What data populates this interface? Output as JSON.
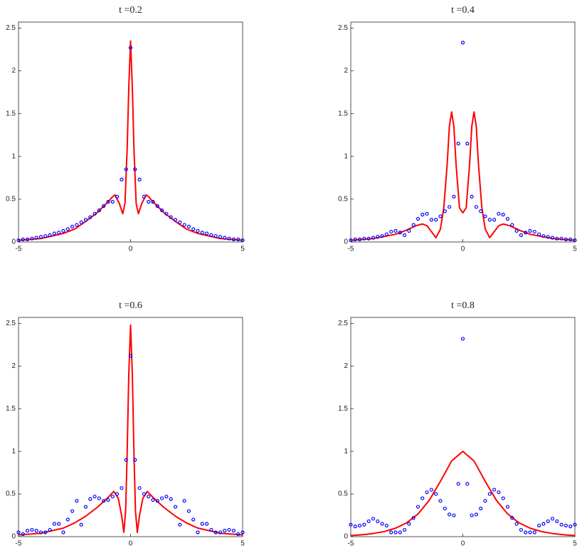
{
  "chart_data": [
    {
      "type": "line",
      "title": "t =0.2",
      "xlim": [
        -5,
        5
      ],
      "ylim": [
        0,
        2.57
      ],
      "xticks": [
        -5,
        0,
        5
      ],
      "yticks": [
        0,
        0.5,
        1,
        1.5,
        2,
        2.5
      ],
      "series": [
        {
          "type": "line",
          "color": "#ff0000",
          "x": [
            -5,
            -4,
            -3,
            -2.5,
            -2,
            -1.5,
            -1,
            -0.8,
            -0.7,
            -0.5,
            -0.35,
            -0.25,
            -0.15,
            -0.08,
            0,
            0.08,
            0.15,
            0.25,
            0.35,
            0.5,
            0.7,
            0.8,
            1,
            1.5,
            2,
            2.5,
            3,
            4,
            5
          ],
          "values": [
            0.02,
            0.04,
            0.1,
            0.15,
            0.24,
            0.34,
            0.47,
            0.53,
            0.55,
            0.45,
            0.33,
            0.45,
            1.1,
            1.8,
            2.35,
            1.8,
            1.1,
            0.45,
            0.33,
            0.45,
            0.55,
            0.53,
            0.47,
            0.34,
            0.24,
            0.15,
            0.1,
            0.04,
            0.02
          ]
        },
        {
          "type": "scatter",
          "color": "#0000ff",
          "x": [
            -5,
            -4.8,
            -4.6,
            -4.4,
            -4.2,
            -4,
            -3.8,
            -3.6,
            -3.4,
            -3.2,
            -3,
            -2.8,
            -2.6,
            -2.4,
            -2.2,
            -2,
            -1.8,
            -1.6,
            -1.4,
            -1.2,
            -1,
            -0.8,
            -0.6,
            -0.4,
            -0.2,
            0,
            0.2,
            0.4,
            0.6,
            0.8,
            1,
            1.2,
            1.4,
            1.6,
            1.8,
            2,
            2.2,
            2.4,
            2.6,
            2.8,
            3,
            3.2,
            3.4,
            3.6,
            3.8,
            4,
            4.2,
            4.4,
            4.6,
            4.8,
            5
          ],
          "values": [
            0.02,
            0.03,
            0.03,
            0.04,
            0.05,
            0.06,
            0.07,
            0.08,
            0.1,
            0.11,
            0.13,
            0.15,
            0.18,
            0.2,
            0.23,
            0.26,
            0.29,
            0.33,
            0.37,
            0.42,
            0.47,
            0.47,
            0.53,
            0.73,
            0.85,
            2.27,
            0.85,
            0.73,
            0.53,
            0.47,
            0.47,
            0.42,
            0.37,
            0.33,
            0.29,
            0.26,
            0.23,
            0.2,
            0.18,
            0.15,
            0.13,
            0.11,
            0.1,
            0.08,
            0.07,
            0.06,
            0.05,
            0.04,
            0.03,
            0.03,
            0.02
          ]
        }
      ]
    },
    {
      "type": "line",
      "title": "t =0.4",
      "xlim": [
        -5,
        5
      ],
      "ylim": [
        0,
        2.57
      ],
      "xticks": [
        -5,
        0,
        5
      ],
      "yticks": [
        0,
        0.5,
        1,
        1.5,
        2,
        2.5
      ],
      "series": [
        {
          "type": "line",
          "color": "#ff0000",
          "x": [
            -5,
            -4,
            -3,
            -2.5,
            -2.1,
            -1.8,
            -1.6,
            -1.4,
            -1.2,
            -1,
            -0.85,
            -0.7,
            -0.6,
            -0.5,
            -0.4,
            -0.3,
            -0.15,
            0,
            0.15,
            0.3,
            0.4,
            0.5,
            0.6,
            0.7,
            0.85,
            1,
            1.2,
            1.4,
            1.6,
            1.8,
            2.1,
            2.5,
            3,
            4,
            5
          ],
          "values": [
            0.02,
            0.04,
            0.09,
            0.14,
            0.19,
            0.21,
            0.19,
            0.12,
            0.05,
            0.15,
            0.4,
            0.9,
            1.35,
            1.52,
            1.35,
            0.9,
            0.4,
            0.34,
            0.4,
            0.9,
            1.35,
            1.52,
            1.35,
            0.9,
            0.4,
            0.15,
            0.05,
            0.12,
            0.19,
            0.21,
            0.19,
            0.14,
            0.09,
            0.04,
            0.02
          ]
        },
        {
          "type": "scatter",
          "color": "#0000ff",
          "x": [
            -5,
            -4.8,
            -4.6,
            -4.4,
            -4.2,
            -4,
            -3.8,
            -3.6,
            -3.4,
            -3.2,
            -3,
            -2.8,
            -2.6,
            -2.4,
            -2.2,
            -2,
            -1.8,
            -1.6,
            -1.4,
            -1.2,
            -1,
            -0.8,
            -0.6,
            -0.4,
            -0.2,
            0,
            0.2,
            0.4,
            0.6,
            0.8,
            1,
            1.2,
            1.4,
            1.6,
            1.8,
            2,
            2.2,
            2.4,
            2.6,
            2.8,
            3,
            3.2,
            3.4,
            3.6,
            3.8,
            4,
            4.2,
            4.4,
            4.6,
            4.8,
            5
          ],
          "values": [
            0.02,
            0.03,
            0.03,
            0.04,
            0.04,
            0.05,
            0.06,
            0.07,
            0.09,
            0.12,
            0.13,
            0.11,
            0.08,
            0.13,
            0.2,
            0.27,
            0.32,
            0.33,
            0.26,
            0.26,
            0.3,
            0.36,
            0.41,
            0.53,
            1.15,
            2.33,
            1.15,
            0.53,
            0.41,
            0.36,
            0.3,
            0.26,
            0.26,
            0.33,
            0.32,
            0.27,
            0.2,
            0.13,
            0.08,
            0.11,
            0.13,
            0.12,
            0.09,
            0.07,
            0.06,
            0.05,
            0.04,
            0.04,
            0.03,
            0.03,
            0.02
          ]
        }
      ]
    },
    {
      "type": "line",
      "title": "t =0.6",
      "xlim": [
        -5,
        5
      ],
      "ylim": [
        0,
        2.57
      ],
      "xticks": [
        -5,
        0,
        5
      ],
      "yticks": [
        0,
        0.5,
        1,
        1.5,
        2,
        2.5
      ],
      "series": [
        {
          "type": "line",
          "color": "#ff0000",
          "x": [
            -5,
            -4,
            -3,
            -2.5,
            -2,
            -1.5,
            -1,
            -0.75,
            -0.55,
            -0.4,
            -0.3,
            -0.22,
            -0.15,
            -0.08,
            0,
            0.08,
            0.15,
            0.22,
            0.3,
            0.4,
            0.55,
            0.75,
            1,
            1.5,
            2,
            2.5,
            3,
            4,
            5
          ],
          "values": [
            0.02,
            0.04,
            0.1,
            0.16,
            0.24,
            0.34,
            0.46,
            0.53,
            0.45,
            0.25,
            0.05,
            0.3,
            1.0,
            1.9,
            2.48,
            1.9,
            1.0,
            0.3,
            0.05,
            0.25,
            0.45,
            0.53,
            0.46,
            0.34,
            0.24,
            0.16,
            0.1,
            0.04,
            0.02
          ]
        },
        {
          "type": "scatter",
          "color": "#0000ff",
          "x": [
            -5,
            -4.8,
            -4.6,
            -4.4,
            -4.2,
            -4,
            -3.8,
            -3.6,
            -3.4,
            -3.2,
            -3,
            -2.8,
            -2.6,
            -2.4,
            -2.2,
            -2,
            -1.8,
            -1.6,
            -1.4,
            -1.2,
            -1,
            -0.8,
            -0.6,
            -0.4,
            -0.2,
            0,
            0.2,
            0.4,
            0.6,
            0.8,
            1,
            1.2,
            1.4,
            1.6,
            1.8,
            2,
            2.2,
            2.4,
            2.6,
            2.8,
            3,
            3.2,
            3.4,
            3.6,
            3.8,
            4,
            4.2,
            4.4,
            4.6,
            4.8,
            5
          ],
          "values": [
            0.05,
            0.03,
            0.07,
            0.08,
            0.07,
            0.05,
            0.05,
            0.08,
            0.15,
            0.15,
            0.05,
            0.2,
            0.3,
            0.42,
            0.14,
            0.35,
            0.44,
            0.47,
            0.45,
            0.42,
            0.43,
            0.47,
            0.5,
            0.57,
            0.9,
            2.12,
            0.9,
            0.57,
            0.5,
            0.47,
            0.43,
            0.42,
            0.45,
            0.47,
            0.44,
            0.35,
            0.14,
            0.42,
            0.3,
            0.2,
            0.05,
            0.15,
            0.15,
            0.08,
            0.05,
            0.05,
            0.07,
            0.08,
            0.07,
            0.03,
            0.05
          ]
        }
      ]
    },
    {
      "type": "line",
      "title": "t =0.8",
      "xlim": [
        -5,
        5
      ],
      "ylim": [
        0,
        2.57
      ],
      "xticks": [
        -5,
        0,
        5
      ],
      "yticks": [
        0,
        0.5,
        1,
        1.5,
        2,
        2.5
      ],
      "series": [
        {
          "type": "line",
          "color": "#ff0000",
          "x": [
            -5,
            -4.5,
            -4,
            -3.5,
            -3,
            -2.5,
            -2,
            -1.5,
            -1,
            -0.5,
            0,
            0.5,
            1,
            1.5,
            2,
            2.5,
            3,
            3.5,
            4,
            4.5,
            5
          ],
          "values": [
            0.013,
            0.022,
            0.037,
            0.06,
            0.099,
            0.163,
            0.266,
            0.425,
            0.648,
            0.887,
            1,
            0.887,
            0.648,
            0.425,
            0.266,
            0.163,
            0.099,
            0.06,
            0.037,
            0.022,
            0.013
          ]
        },
        {
          "type": "scatter",
          "color": "#0000ff",
          "x": [
            -5,
            -4.8,
            -4.6,
            -4.4,
            -4.2,
            -4,
            -3.8,
            -3.6,
            -3.4,
            -3.2,
            -3,
            -2.8,
            -2.6,
            -2.4,
            -2.2,
            -2,
            -1.8,
            -1.6,
            -1.4,
            -1.2,
            -1,
            -0.8,
            -0.6,
            -0.4,
            -0.2,
            0,
            0.2,
            0.4,
            0.6,
            0.8,
            1,
            1.2,
            1.4,
            1.6,
            1.8,
            2,
            2.2,
            2.4,
            2.6,
            2.8,
            3,
            3.2,
            3.4,
            3.6,
            3.8,
            4,
            4.2,
            4.4,
            4.6,
            4.8,
            5
          ],
          "values": [
            0.14,
            0.12,
            0.13,
            0.14,
            0.18,
            0.21,
            0.18,
            0.15,
            0.13,
            0.05,
            0.05,
            0.05,
            0.08,
            0.15,
            0.22,
            0.35,
            0.45,
            0.52,
            0.55,
            0.5,
            0.42,
            0.33,
            0.26,
            0.25,
            0.62,
            2.32,
            0.62,
            0.25,
            0.26,
            0.33,
            0.42,
            0.5,
            0.55,
            0.52,
            0.45,
            0.35,
            0.22,
            0.15,
            0.08,
            0.05,
            0.05,
            0.05,
            0.13,
            0.15,
            0.18,
            0.21,
            0.18,
            0.14,
            0.13,
            0.12,
            0.14
          ]
        }
      ]
    }
  ]
}
